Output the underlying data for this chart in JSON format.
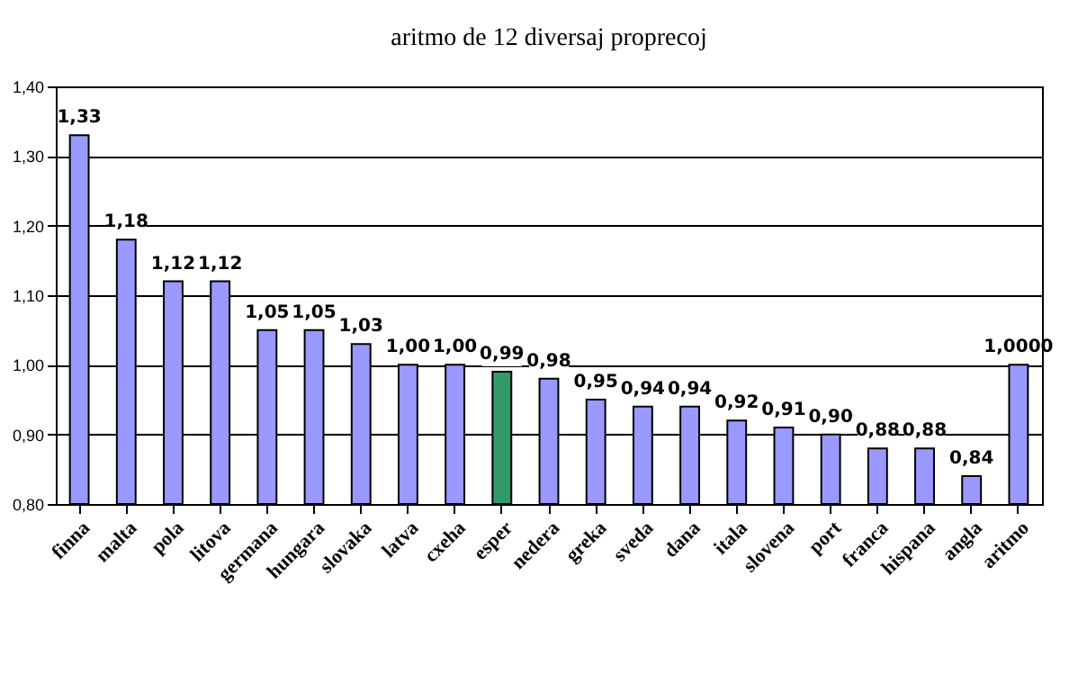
{
  "chart_data": {
    "type": "bar",
    "title": "aritmo de 12 diversaj proprecoj",
    "categories": [
      "finna",
      "malta",
      "pola",
      "litova",
      "germana",
      "hungara",
      "slovaka",
      "latva",
      "cxeha",
      "esper",
      "nedera",
      "greka",
      "sveda",
      "dana",
      "itala",
      "slovena",
      "port",
      "franca",
      "hispana",
      "angla",
      "aritmo"
    ],
    "values": [
      1.33,
      1.18,
      1.12,
      1.12,
      1.05,
      1.05,
      1.03,
      1.0,
      1.0,
      0.99,
      0.98,
      0.95,
      0.94,
      0.94,
      0.92,
      0.91,
      0.9,
      0.88,
      0.88,
      0.84,
      1.0
    ],
    "value_labels": [
      "1,33",
      "1,18",
      "1,12",
      "1,12",
      "1,05",
      "1,05",
      "1,03",
      "1,00",
      "1,00",
      "0,99",
      "0,98",
      "0,95",
      "0,94",
      "0,94",
      "0,92",
      "0,91",
      "0,90",
      "0,88",
      "0,88",
      "0,84",
      "1,0000"
    ],
    "colors": [
      "#9999ff",
      "#9999ff",
      "#9999ff",
      "#9999ff",
      "#9999ff",
      "#9999ff",
      "#9999ff",
      "#9999ff",
      "#9999ff",
      "#339966",
      "#9999ff",
      "#9999ff",
      "#9999ff",
      "#9999ff",
      "#9999ff",
      "#9999ff",
      "#9999ff",
      "#9999ff",
      "#9999ff",
      "#9999ff",
      "#9999ff"
    ],
    "ylim": [
      0.8,
      1.4
    ],
    "yticks": [
      {
        "value": 0.8,
        "label": "0,80"
      },
      {
        "value": 0.9,
        "label": "0,90"
      },
      {
        "value": 1.0,
        "label": "1,00"
      },
      {
        "value": 1.1,
        "label": "1,10"
      },
      {
        "value": 1.2,
        "label": "1,20"
      },
      {
        "value": 1.3,
        "label": "1,30"
      },
      {
        "value": 1.4,
        "label": "1,40"
      }
    ],
    "grid": "y"
  }
}
